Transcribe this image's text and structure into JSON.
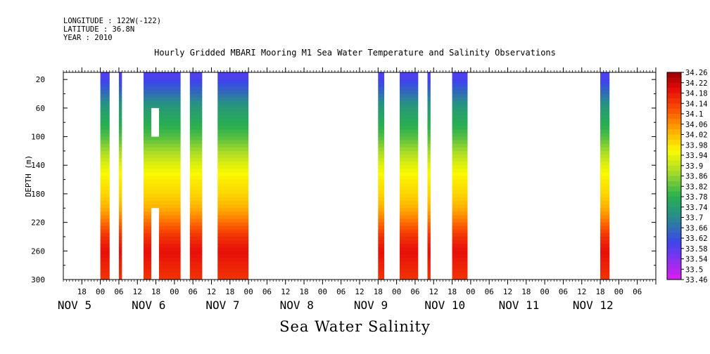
{
  "header": {
    "longitude": "LONGITUDE : 122W(-122)",
    "latitude": "LATITUDE : 36.8N",
    "year": "YEAR : 2010"
  },
  "title": "Hourly Gridded MBARI Mooring M1 Sea Water Temperature and Salinity Observations",
  "variable_label": "Sea Water Salinity",
  "chart_data": {
    "type": "heatmap",
    "title": "Hourly Gridded MBARI Mooring M1 Sea Water Temperature and Salinity Observations",
    "xlabel": "",
    "ylabel": "DEPTH (m)",
    "x_unit": "hours since Nov 4 2010 12:00",
    "xlim": [
      0,
      192
    ],
    "ylim": [
      300,
      10
    ],
    "y_ticks": [
      20,
      60,
      100,
      140,
      180,
      220,
      260,
      300
    ],
    "x_hour_ticks": [
      {
        "x": 6,
        "label": "18"
      },
      {
        "x": 12,
        "label": "00"
      },
      {
        "x": 18,
        "label": "06"
      },
      {
        "x": 24,
        "label": "12"
      },
      {
        "x": 30,
        "label": "18"
      },
      {
        "x": 36,
        "label": "00"
      },
      {
        "x": 42,
        "label": "06"
      },
      {
        "x": 48,
        "label": "12"
      },
      {
        "x": 54,
        "label": "18"
      },
      {
        "x": 60,
        "label": "00"
      },
      {
        "x": 66,
        "label": "06"
      },
      {
        "x": 72,
        "label": "12"
      },
      {
        "x": 78,
        "label": "18"
      },
      {
        "x": 84,
        "label": "00"
      },
      {
        "x": 90,
        "label": "06"
      },
      {
        "x": 96,
        "label": "12"
      },
      {
        "x": 102,
        "label": "18"
      },
      {
        "x": 108,
        "label": "00"
      },
      {
        "x": 114,
        "label": "06"
      },
      {
        "x": 120,
        "label": "12"
      },
      {
        "x": 126,
        "label": "18"
      },
      {
        "x": 132,
        "label": "00"
      },
      {
        "x": 138,
        "label": "06"
      },
      {
        "x": 144,
        "label": "12"
      },
      {
        "x": 150,
        "label": "18"
      },
      {
        "x": 156,
        "label": "00"
      },
      {
        "x": 162,
        "label": "06"
      },
      {
        "x": 168,
        "label": "12"
      },
      {
        "x": 174,
        "label": "18"
      },
      {
        "x": 180,
        "label": "00"
      },
      {
        "x": 186,
        "label": "06"
      },
      {
        "x": 192,
        "label": "12"
      }
    ],
    "x_day_labels": [
      {
        "x": 0,
        "label": "NOV  5"
      },
      {
        "x": 24,
        "label": "NOV  6"
      },
      {
        "x": 48,
        "label": "NOV  7"
      },
      {
        "x": 72,
        "label": "NOV  8"
      },
      {
        "x": 96,
        "label": "NOV  9"
      },
      {
        "x": 120,
        "label": "NOV 10"
      },
      {
        "x": 144,
        "label": "NOV 11"
      },
      {
        "x": 168,
        "label": "NOV 12"
      }
    ],
    "segments": [
      {
        "x0": 12,
        "x1": 15
      },
      {
        "x0": 18,
        "x1": 19
      },
      {
        "x0": 26,
        "x1": 38
      },
      {
        "x0": 41,
        "x1": 45
      },
      {
        "x0": 50,
        "x1": 60
      },
      {
        "x0": 102,
        "x1": 104
      },
      {
        "x0": 109,
        "x1": 115
      },
      {
        "x0": 118,
        "x1": 119
      },
      {
        "x0": 126,
        "x1": 131
      },
      {
        "x0": 174,
        "x1": 177
      }
    ],
    "gaps": [
      {
        "x0": 28.5,
        "x1": 31,
        "y0": 60,
        "y1": 100
      },
      {
        "x0": 28.5,
        "x1": 31,
        "y0": 200,
        "y1": 300
      }
    ],
    "profile": {
      "depths": [
        20,
        40,
        60,
        80,
        100,
        120,
        140,
        160,
        180,
        200,
        220,
        240,
        260,
        280,
        300
      ],
      "salinity": [
        33.59,
        33.66,
        33.73,
        33.77,
        33.81,
        33.87,
        33.93,
        33.97,
        33.99,
        34.03,
        34.09,
        34.15,
        34.19,
        34.17,
        34.15
      ]
    },
    "colorbar": {
      "min": 33.46,
      "max": 34.26,
      "step": 0.02,
      "labels": [
        "34.26",
        "34.22",
        "34.18",
        "34.14",
        "34.1",
        "34.06",
        "34.02",
        "33.98",
        "33.94",
        "33.9",
        "33.86",
        "33.82",
        "33.78",
        "33.74",
        "33.7",
        "33.66",
        "33.62",
        "33.58",
        "33.54",
        "33.5",
        "33.46"
      ]
    }
  }
}
